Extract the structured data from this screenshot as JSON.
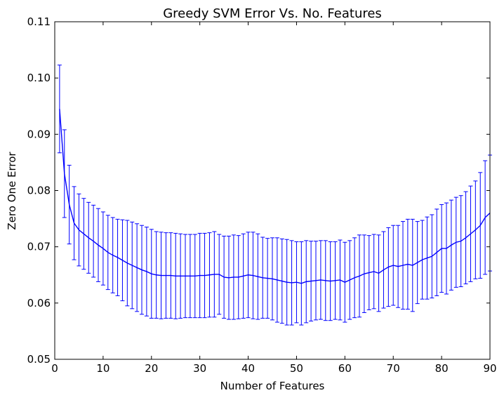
{
  "chart_data": {
    "type": "line",
    "title": "Greedy SVM Error Vs. No. Features",
    "xlabel": "Number of Features",
    "ylabel": "Zero One Error",
    "xlim": [
      0,
      90
    ],
    "ylim": [
      0.05,
      0.11
    ],
    "xticks": [
      0,
      10,
      20,
      30,
      40,
      50,
      60,
      70,
      80,
      90
    ],
    "yticks": [
      0.05,
      0.06,
      0.07,
      0.08,
      0.09,
      0.1,
      0.11
    ],
    "xtick_labels": [
      "0",
      "10",
      "20",
      "30",
      "40",
      "50",
      "60",
      "70",
      "80",
      "90"
    ],
    "ytick_labels": [
      "0.05",
      "0.06",
      "0.07",
      "0.08",
      "0.09",
      "0.10",
      "0.11"
    ],
    "grid": false,
    "color": "#0000ff",
    "series": [
      {
        "x": [
          1,
          2,
          3,
          4,
          5,
          6,
          7,
          8,
          9,
          10,
          11,
          12,
          13,
          14,
          15,
          16,
          17,
          18,
          19,
          20,
          21,
          22,
          23,
          24,
          25,
          26,
          27,
          28,
          29,
          30,
          31,
          32,
          33,
          34,
          35,
          36,
          37,
          38,
          39,
          40,
          41,
          42,
          43,
          44,
          45,
          46,
          47,
          48,
          49,
          50,
          51,
          52,
          53,
          54,
          55,
          56,
          57,
          58,
          59,
          60,
          61,
          62,
          63,
          64,
          65,
          66,
          67,
          68,
          69,
          70,
          71,
          72,
          73,
          74,
          75,
          76,
          77,
          78,
          79,
          80,
          81,
          82,
          83,
          84,
          85,
          86,
          87,
          88,
          89,
          90
        ],
        "y": [
          0.0945,
          0.083,
          0.0775,
          0.0742,
          0.073,
          0.0723,
          0.0716,
          0.071,
          0.0703,
          0.0697,
          0.069,
          0.0685,
          0.0681,
          0.0676,
          0.0671,
          0.0667,
          0.0663,
          0.0659,
          0.0656,
          0.0652,
          0.065,
          0.0649,
          0.0649,
          0.0649,
          0.0648,
          0.0648,
          0.0648,
          0.0648,
          0.0648,
          0.0649,
          0.0649,
          0.065,
          0.0651,
          0.0651,
          0.0646,
          0.0645,
          0.0646,
          0.0646,
          0.0648,
          0.065,
          0.0649,
          0.0647,
          0.0645,
          0.0644,
          0.0643,
          0.0641,
          0.0639,
          0.0637,
          0.0636,
          0.0637,
          0.0635,
          0.0638,
          0.0639,
          0.064,
          0.0641,
          0.064,
          0.0639,
          0.064,
          0.0641,
          0.0637,
          0.0641,
          0.0645,
          0.0648,
          0.0652,
          0.0654,
          0.0656,
          0.0653,
          0.0659,
          0.0664,
          0.0667,
          0.0665,
          0.0667,
          0.0669,
          0.0667,
          0.0672,
          0.0677,
          0.068,
          0.0683,
          0.069,
          0.0697,
          0.0697,
          0.0703,
          0.0708,
          0.071,
          0.0716,
          0.0723,
          0.073,
          0.0738,
          0.0752,
          0.076
        ],
        "err": [
          0.0078,
          0.0078,
          0.007,
          0.0065,
          0.0064,
          0.0063,
          0.0063,
          0.0064,
          0.0065,
          0.0065,
          0.0066,
          0.0067,
          0.0068,
          0.0072,
          0.0076,
          0.0077,
          0.0078,
          0.0079,
          0.0079,
          0.0079,
          0.0077,
          0.0077,
          0.0076,
          0.0076,
          0.0076,
          0.0075,
          0.0074,
          0.0074,
          0.0074,
          0.0075,
          0.0075,
          0.0075,
          0.0076,
          0.0071,
          0.0073,
          0.0074,
          0.0075,
          0.0074,
          0.0075,
          0.0076,
          0.0077,
          0.0076,
          0.0072,
          0.0071,
          0.0073,
          0.0075,
          0.0075,
          0.0076,
          0.0075,
          0.0072,
          0.0074,
          0.0073,
          0.0071,
          0.007,
          0.007,
          0.0071,
          0.007,
          0.0069,
          0.0071,
          0.0071,
          0.007,
          0.0071,
          0.0073,
          0.0069,
          0.0066,
          0.0066,
          0.0068,
          0.0068,
          0.007,
          0.0071,
          0.0073,
          0.0078,
          0.008,
          0.0082,
          0.0073,
          0.007,
          0.0073,
          0.0074,
          0.0077,
          0.0078,
          0.0081,
          0.008,
          0.008,
          0.0081,
          0.0082,
          0.0085,
          0.0087,
          0.0094,
          0.0101,
          0.0103
        ]
      }
    ]
  }
}
